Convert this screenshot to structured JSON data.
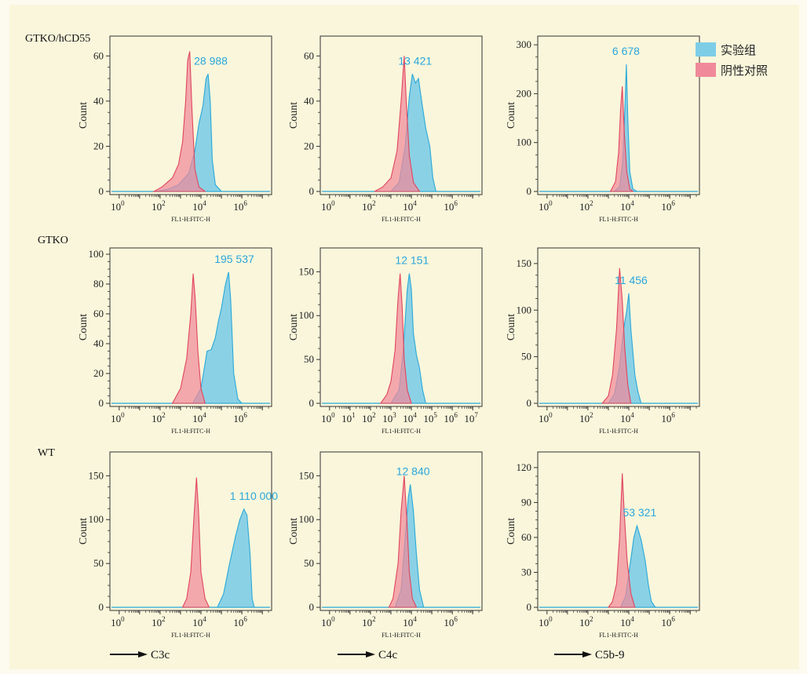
{
  "row_labels": [
    "GTKO/hCD55",
    "GTKO",
    "WT"
  ],
  "legend": [
    {
      "label": "实验组",
      "color": "#7ecde6"
    },
    {
      "label": "阴性对照",
      "color": "#f08a9a"
    }
  ],
  "markers": [
    "C3c",
    "C4c",
    "C5b-9"
  ],
  "colors": {
    "experimental_fill": "#7ecde6",
    "experimental_line": "#2aa8d8",
    "control_fill": "#f0899a",
    "control_line": "#e0455c",
    "peak_label": "#2aa6dc",
    "overlap_fill": "#8b8aa3"
  },
  "chart_data": [
    {
      "type": "area",
      "row": 1,
      "col": 1,
      "xlabel": "FL1-H:FITC-H",
      "ylabel": "Count",
      "x_scale": "log",
      "x_ticks": [
        {
          "exp": "0"
        },
        {
          "exp": "2"
        },
        {
          "exp": "4"
        },
        {
          "exp": "6"
        }
      ],
      "ylim": [
        0,
        66
      ],
      "y_ticks": [
        "0",
        "20",
        "40",
        "60"
      ],
      "y_tick_values": [
        0,
        20,
        40,
        60
      ],
      "peak_label": "28 988",
      "series": [
        {
          "name": "实验组",
          "points": [
            [
              1.8,
              0
            ],
            [
              2.4,
              1
            ],
            [
              2.9,
              3
            ],
            [
              3.4,
              8
            ],
            [
              3.7,
              18
            ],
            [
              3.9,
              30
            ],
            [
              4.1,
              38
            ],
            [
              4.25,
              50
            ],
            [
              4.35,
              52
            ],
            [
              4.45,
              40
            ],
            [
              4.55,
              14
            ],
            [
              4.7,
              3
            ],
            [
              5.0,
              0
            ]
          ]
        },
        {
          "name": "阴性对照",
          "points": [
            [
              1.7,
              0
            ],
            [
              2.1,
              2
            ],
            [
              2.6,
              6
            ],
            [
              2.9,
              12
            ],
            [
              3.1,
              22
            ],
            [
              3.25,
              40
            ],
            [
              3.35,
              58
            ],
            [
              3.45,
              62
            ],
            [
              3.55,
              38
            ],
            [
              3.7,
              10
            ],
            [
              3.9,
              2
            ],
            [
              4.2,
              0
            ]
          ]
        }
      ]
    },
    {
      "type": "area",
      "row": 1,
      "col": 2,
      "xlabel": "FL1-H:FITC-H",
      "ylabel": "Count",
      "x_scale": "log",
      "x_ticks": [
        {
          "exp": "0"
        },
        {
          "exp": "2"
        },
        {
          "exp": "4"
        },
        {
          "exp": "6"
        }
      ],
      "ylim": [
        0,
        66
      ],
      "y_ticks": [
        "0",
        "20",
        "40",
        "60"
      ],
      "y_tick_values": [
        0,
        20,
        40,
        60
      ],
      "peak_label": "13 421",
      "series": [
        {
          "name": "实验组",
          "points": [
            [
              3.0,
              0
            ],
            [
              3.4,
              4
            ],
            [
              3.7,
              20
            ],
            [
              3.9,
              42
            ],
            [
              4.05,
              52
            ],
            [
              4.2,
              48
            ],
            [
              4.35,
              50
            ],
            [
              4.5,
              40
            ],
            [
              4.7,
              28
            ],
            [
              4.9,
              20
            ],
            [
              5.05,
              6
            ],
            [
              5.2,
              0
            ]
          ]
        },
        {
          "name": "阴性对照",
          "points": [
            [
              2.2,
              0
            ],
            [
              2.6,
              2
            ],
            [
              3.0,
              6
            ],
            [
              3.3,
              18
            ],
            [
              3.5,
              40
            ],
            [
              3.65,
              60
            ],
            [
              3.75,
              40
            ],
            [
              3.9,
              16
            ],
            [
              4.1,
              4
            ],
            [
              4.4,
              0
            ]
          ]
        }
      ]
    },
    {
      "type": "area",
      "row": 1,
      "col": 3,
      "xlabel": "FL1-H:FITC-H",
      "ylabel": "Count",
      "x_scale": "log",
      "x_ticks": [
        {
          "exp": "0"
        },
        {
          "exp": "2"
        },
        {
          "exp": "4"
        },
        {
          "exp": "6"
        }
      ],
      "ylim": [
        0,
        305
      ],
      "y_ticks": [
        "0",
        "100",
        "200",
        "300"
      ],
      "y_tick_values": [
        0,
        100,
        200,
        300
      ],
      "peak_label": "6 678",
      "series": [
        {
          "name": "实验组",
          "points": [
            [
              3.3,
              0
            ],
            [
              3.55,
              10
            ],
            [
              3.7,
              60
            ],
            [
              3.8,
              160
            ],
            [
              3.88,
              260
            ],
            [
              3.95,
              150
            ],
            [
              4.05,
              40
            ],
            [
              4.2,
              5
            ],
            [
              4.4,
              0
            ]
          ]
        },
        {
          "name": "阴性对照",
          "points": [
            [
              3.1,
              0
            ],
            [
              3.35,
              20
            ],
            [
              3.5,
              80
            ],
            [
              3.6,
              170
            ],
            [
              3.68,
              215
            ],
            [
              3.78,
              120
            ],
            [
              3.9,
              40
            ],
            [
              4.05,
              5
            ],
            [
              4.2,
              0
            ]
          ]
        }
      ]
    },
    {
      "type": "area",
      "row": 2,
      "col": 1,
      "xlabel": "FL1-H:FITC-H",
      "ylabel": "Count",
      "x_scale": "log",
      "x_ticks": [
        {
          "exp": "0"
        },
        {
          "exp": "2"
        },
        {
          "exp": "4"
        },
        {
          "exp": "6"
        }
      ],
      "ylim": [
        0,
        100
      ],
      "y_ticks": [
        "0",
        "20",
        "40",
        "60",
        "80",
        "100"
      ],
      "y_tick_values": [
        0,
        20,
        40,
        60,
        80,
        100
      ],
      "peak_label": "195 537",
      "series": [
        {
          "name": "实验组",
          "points": [
            [
              3.6,
              0
            ],
            [
              4.0,
              10
            ],
            [
              4.3,
              35
            ],
            [
              4.5,
              36
            ],
            [
              4.7,
              44
            ],
            [
              4.85,
              55
            ],
            [
              5.0,
              64
            ],
            [
              5.2,
              80
            ],
            [
              5.35,
              88
            ],
            [
              5.45,
              70
            ],
            [
              5.6,
              20
            ],
            [
              5.8,
              3
            ],
            [
              6.0,
              0
            ]
          ]
        },
        {
          "name": "阴性对照",
          "points": [
            [
              2.6,
              0
            ],
            [
              3.0,
              10
            ],
            [
              3.3,
              30
            ],
            [
              3.5,
              60
            ],
            [
              3.62,
              87
            ],
            [
              3.72,
              70
            ],
            [
              3.85,
              35
            ],
            [
              4.0,
              10
            ],
            [
              4.2,
              0
            ]
          ]
        }
      ]
    },
    {
      "type": "area",
      "row": 2,
      "col": 2,
      "xlabel": "FL1-H:FITC-H",
      "ylabel": "Count",
      "x_scale": "log",
      "x_ticks": [
        {
          "exp": "0"
        },
        {
          "exp": "1"
        },
        {
          "exp": "2"
        },
        {
          "exp": "3"
        },
        {
          "exp": "4"
        },
        {
          "exp": "5"
        },
        {
          "exp": "6"
        },
        {
          "exp": "7"
        }
      ],
      "ylim": [
        0,
        170
      ],
      "y_ticks": [
        "0",
        "50",
        "100",
        "150"
      ],
      "y_tick_values": [
        0,
        50,
        100,
        150
      ],
      "peak_label": "12 151",
      "series": [
        {
          "name": "实验组",
          "points": [
            [
              3.0,
              0
            ],
            [
              3.4,
              15
            ],
            [
              3.6,
              60
            ],
            [
              3.8,
              130
            ],
            [
              3.9,
              148
            ],
            [
              4.0,
              130
            ],
            [
              4.1,
              80
            ],
            [
              4.25,
              55
            ],
            [
              4.4,
              40
            ],
            [
              4.55,
              15
            ],
            [
              4.7,
              0
            ]
          ]
        },
        {
          "name": "阴性对照",
          "points": [
            [
              2.5,
              0
            ],
            [
              2.8,
              10
            ],
            [
              3.0,
              25
            ],
            [
              3.2,
              60
            ],
            [
              3.35,
              120
            ],
            [
              3.45,
              148
            ],
            [
              3.55,
              110
            ],
            [
              3.65,
              50
            ],
            [
              3.8,
              15
            ],
            [
              4.0,
              0
            ]
          ]
        }
      ]
    },
    {
      "type": "area",
      "row": 2,
      "col": 3,
      "xlabel": "FL1-H:FITC-H",
      "ylabel": "Count",
      "x_scale": "log",
      "x_ticks": [
        {
          "exp": "0"
        },
        {
          "exp": "2"
        },
        {
          "exp": "4"
        },
        {
          "exp": "6"
        }
      ],
      "ylim": [
        0,
        160
      ],
      "y_ticks": [
        "0",
        "50",
        "100",
        "150"
      ],
      "y_tick_values": [
        0,
        50,
        100,
        150
      ],
      "peak_label": "11 456",
      "series": [
        {
          "name": "实验组",
          "points": [
            [
              3.0,
              0
            ],
            [
              3.3,
              10
            ],
            [
              3.55,
              40
            ],
            [
              3.75,
              80
            ],
            [
              3.9,
              100
            ],
            [
              4.0,
              118
            ],
            [
              4.1,
              80
            ],
            [
              4.3,
              30
            ],
            [
              4.45,
              12
            ],
            [
              4.6,
              0
            ]
          ]
        },
        {
          "name": "阴性对照",
          "points": [
            [
              2.7,
              0
            ],
            [
              3.0,
              8
            ],
            [
              3.2,
              30
            ],
            [
              3.4,
              80
            ],
            [
              3.55,
              145
            ],
            [
              3.68,
              110
            ],
            [
              3.8,
              60
            ],
            [
              3.95,
              20
            ],
            [
              4.1,
              0
            ]
          ]
        }
      ]
    },
    {
      "type": "area",
      "row": 3,
      "col": 1,
      "xlabel": "FL1-H:FITC-H",
      "ylabel": "Count",
      "x_scale": "log",
      "x_ticks": [
        {
          "exp": "0"
        },
        {
          "exp": "2"
        },
        {
          "exp": "4"
        },
        {
          "exp": "6"
        }
      ],
      "ylim": [
        0,
        170
      ],
      "y_ticks": [
        "0",
        "50",
        "100",
        "150"
      ],
      "y_tick_values": [
        0,
        50,
        100,
        150
      ],
      "peak_label": "1 110 000",
      "series": [
        {
          "name": "实验组",
          "points": [
            [
              4.8,
              0
            ],
            [
              5.1,
              15
            ],
            [
              5.4,
              50
            ],
            [
              5.7,
              82
            ],
            [
              5.9,
              100
            ],
            [
              6.1,
              112
            ],
            [
              6.25,
              105
            ],
            [
              6.4,
              60
            ],
            [
              6.5,
              10
            ],
            [
              6.6,
              0
            ]
          ]
        },
        {
          "name": "阴性对照",
          "points": [
            [
              3.1,
              0
            ],
            [
              3.3,
              10
            ],
            [
              3.5,
              40
            ],
            [
              3.65,
              100
            ],
            [
              3.78,
              148
            ],
            [
              3.88,
              110
            ],
            [
              4.0,
              40
            ],
            [
              4.2,
              10
            ],
            [
              4.4,
              0
            ]
          ]
        }
      ]
    },
    {
      "type": "area",
      "row": 3,
      "col": 2,
      "xlabel": "FL1-H:FITC-H",
      "ylabel": "Count",
      "x_scale": "log",
      "x_ticks": [
        {
          "exp": "0"
        },
        {
          "exp": "2"
        },
        {
          "exp": "4"
        },
        {
          "exp": "6"
        }
      ],
      "ylim": [
        0,
        170
      ],
      "y_ticks": [
        "0",
        "50",
        "100",
        "150"
      ],
      "y_tick_values": [
        0,
        50,
        100,
        150
      ],
      "peak_label": "12 840",
      "series": [
        {
          "name": "实验组",
          "points": [
            [
              3.2,
              0
            ],
            [
              3.5,
              20
            ],
            [
              3.7,
              80
            ],
            [
              3.85,
              125
            ],
            [
              3.95,
              140
            ],
            [
              4.1,
              110
            ],
            [
              4.25,
              60
            ],
            [
              4.4,
              20
            ],
            [
              4.6,
              0
            ]
          ]
        },
        {
          "name": "阴性对照",
          "points": [
            [
              2.9,
              0
            ],
            [
              3.1,
              10
            ],
            [
              3.35,
              50
            ],
            [
              3.5,
              110
            ],
            [
              3.65,
              150
            ],
            [
              3.78,
              100
            ],
            [
              3.9,
              40
            ],
            [
              4.05,
              10
            ],
            [
              4.25,
              0
            ]
          ]
        }
      ]
    },
    {
      "type": "area",
      "row": 3,
      "col": 3,
      "xlabel": "FL1-H:FITC-H",
      "ylabel": "Count",
      "x_scale": "log",
      "x_ticks": [
        {
          "exp": "0"
        },
        {
          "exp": "2"
        },
        {
          "exp": "4"
        },
        {
          "exp": "6"
        }
      ],
      "ylim": [
        0,
        128
      ],
      "y_ticks": [
        "0",
        "30",
        "60",
        "90",
        "120"
      ],
      "y_tick_values": [
        0,
        30,
        60,
        90,
        120
      ],
      "peak_label": "53 321",
      "series": [
        {
          "name": "实验组",
          "points": [
            [
              3.6,
              0
            ],
            [
              3.85,
              10
            ],
            [
              4.05,
              35
            ],
            [
              4.25,
              60
            ],
            [
              4.4,
              70
            ],
            [
              4.6,
              58
            ],
            [
              4.8,
              40
            ],
            [
              4.95,
              20
            ],
            [
              5.1,
              5
            ],
            [
              5.3,
              0
            ]
          ]
        },
        {
          "name": "阴性对照",
          "points": [
            [
              3.0,
              0
            ],
            [
              3.2,
              5
            ],
            [
              3.4,
              20
            ],
            [
              3.55,
              60
            ],
            [
              3.68,
              115
            ],
            [
              3.78,
              80
            ],
            [
              3.92,
              40
            ],
            [
              4.1,
              12
            ],
            [
              4.3,
              0
            ]
          ]
        }
      ]
    }
  ]
}
